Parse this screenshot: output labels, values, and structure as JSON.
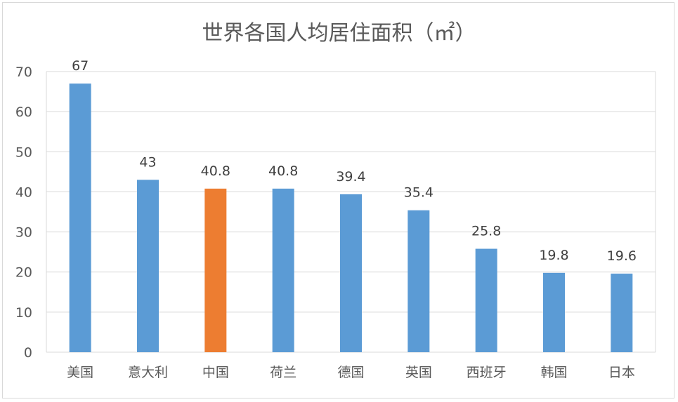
{
  "chart_data": {
    "type": "bar",
    "title": "世界各国人均居住面积（㎡）",
    "categories": [
      "美国",
      "意大利",
      "中国",
      "荷兰",
      "德国",
      "英国",
      "西班牙",
      "韩国",
      "日本"
    ],
    "values": [
      67,
      43,
      40.8,
      40.8,
      39.4,
      35.4,
      25.8,
      19.8,
      19.6
    ],
    "ylim": [
      0,
      70
    ],
    "yticks": [
      0,
      10,
      20,
      30,
      40,
      50,
      60,
      70
    ],
    "grid": true,
    "legend": "none",
    "colors": {
      "default_bar": "#5b9bd5",
      "highlight_bar": "#ed7d31",
      "highlight_category": "中国",
      "gridline": "#d9d9d9",
      "axis_text": "#595959"
    }
  }
}
